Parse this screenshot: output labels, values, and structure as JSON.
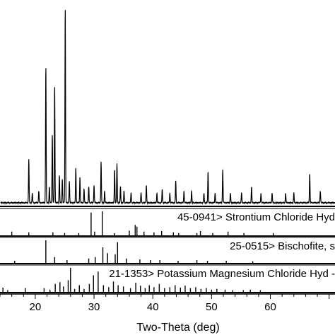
{
  "chart_data": {
    "type": "line",
    "xlabel": "Two-Theta (deg)",
    "xlim": [
      14,
      71
    ],
    "x_ticks": [
      20,
      30,
      40,
      50,
      60
    ],
    "grid": false,
    "pattern": {
      "peaks": [
        {
          "x": 18.9,
          "h": 0.22
        },
        {
          "x": 19.5,
          "h": 0.05
        },
        {
          "x": 20.6,
          "h": 0.06
        },
        {
          "x": 21.8,
          "h": 0.7
        },
        {
          "x": 22.4,
          "h": 0.08
        },
        {
          "x": 22.9,
          "h": 0.35
        },
        {
          "x": 23.3,
          "h": 0.6
        },
        {
          "x": 24.1,
          "h": 0.14
        },
        {
          "x": 24.6,
          "h": 0.12
        },
        {
          "x": 25.1,
          "h": 1.0
        },
        {
          "x": 25.8,
          "h": 0.11
        },
        {
          "x": 26.9,
          "h": 0.18
        },
        {
          "x": 27.6,
          "h": 0.13
        },
        {
          "x": 28.3,
          "h": 0.07
        },
        {
          "x": 29.1,
          "h": 0.08
        },
        {
          "x": 30.0,
          "h": 0.09
        },
        {
          "x": 31.2,
          "h": 0.21
        },
        {
          "x": 31.8,
          "h": 0.06
        },
        {
          "x": 33.5,
          "h": 0.17
        },
        {
          "x": 33.9,
          "h": 0.2
        },
        {
          "x": 34.5,
          "h": 0.08
        },
        {
          "x": 35.1,
          "h": 0.06
        },
        {
          "x": 36.3,
          "h": 0.05
        },
        {
          "x": 38.0,
          "h": 0.05
        },
        {
          "x": 38.9,
          "h": 0.09
        },
        {
          "x": 40.7,
          "h": 0.05
        },
        {
          "x": 41.6,
          "h": 0.07
        },
        {
          "x": 42.9,
          "h": 0.05
        },
        {
          "x": 43.9,
          "h": 0.11
        },
        {
          "x": 45.3,
          "h": 0.06
        },
        {
          "x": 46.6,
          "h": 0.06
        },
        {
          "x": 48.7,
          "h": 0.05
        },
        {
          "x": 49.4,
          "h": 0.16
        },
        {
          "x": 50.6,
          "h": 0.05
        },
        {
          "x": 51.9,
          "h": 0.17
        },
        {
          "x": 53.2,
          "h": 0.05
        },
        {
          "x": 55.1,
          "h": 0.05
        },
        {
          "x": 56.8,
          "h": 0.08
        },
        {
          "x": 58.4,
          "h": 0.05
        },
        {
          "x": 60.3,
          "h": 0.05
        },
        {
          "x": 62.6,
          "h": 0.05
        },
        {
          "x": 64.0,
          "h": 0.05
        },
        {
          "x": 66.7,
          "h": 0.15
        },
        {
          "x": 68.5,
          "h": 0.06
        }
      ]
    },
    "references": [
      {
        "label": "45-0941> Strontium Chloride Hyd",
        "lines": [
          {
            "x": 16.0,
            "h": 0.18
          },
          {
            "x": 18.9,
            "h": 0.15
          },
          {
            "x": 23.0,
            "h": 0.15
          },
          {
            "x": 25.0,
            "h": 0.12
          },
          {
            "x": 27.4,
            "h": 0.12
          },
          {
            "x": 29.5,
            "h": 0.95
          },
          {
            "x": 30.1,
            "h": 0.18
          },
          {
            "x": 31.4,
            "h": 1.0
          },
          {
            "x": 33.5,
            "h": 0.12
          },
          {
            "x": 36.0,
            "h": 0.22
          },
          {
            "x": 37.0,
            "h": 0.45
          },
          {
            "x": 37.3,
            "h": 0.38
          },
          {
            "x": 38.5,
            "h": 0.18
          },
          {
            "x": 40.2,
            "h": 0.15
          },
          {
            "x": 41.5,
            "h": 0.2
          },
          {
            "x": 43.5,
            "h": 0.15
          },
          {
            "x": 44.4,
            "h": 0.12
          },
          {
            "x": 47.5,
            "h": 0.12
          },
          {
            "x": 48.1,
            "h": 0.2
          },
          {
            "x": 50.2,
            "h": 0.12
          },
          {
            "x": 52.8,
            "h": 0.18
          },
          {
            "x": 55.5,
            "h": 0.12
          },
          {
            "x": 60.5,
            "h": 0.12
          }
        ]
      },
      {
        "label": "25-0515> Bischofite, s",
        "lines": [
          {
            "x": 16.5,
            "h": 0.12
          },
          {
            "x": 21.8,
            "h": 1.0
          },
          {
            "x": 23.3,
            "h": 0.28
          },
          {
            "x": 25.4,
            "h": 0.15
          },
          {
            "x": 29.1,
            "h": 0.22
          },
          {
            "x": 30.2,
            "h": 0.28
          },
          {
            "x": 31.5,
            "h": 0.7
          },
          {
            "x": 32.3,
            "h": 0.45
          },
          {
            "x": 33.6,
            "h": 0.4
          },
          {
            "x": 34.0,
            "h": 0.92
          },
          {
            "x": 35.5,
            "h": 0.22
          },
          {
            "x": 37.8,
            "h": 0.18
          },
          {
            "x": 39.6,
            "h": 0.15
          },
          {
            "x": 41.2,
            "h": 0.15
          },
          {
            "x": 44.3,
            "h": 0.12
          },
          {
            "x": 47.5,
            "h": 0.15
          },
          {
            "x": 49.3,
            "h": 0.12
          },
          {
            "x": 52.5,
            "h": 0.12
          },
          {
            "x": 57.0,
            "h": 0.1
          }
        ]
      },
      {
        "label": "21-1353> Potassium Magnesium Chloride Hyd -",
        "lines": [
          {
            "x": 14.5,
            "h": 0.2
          },
          {
            "x": 15.3,
            "h": 0.1
          },
          {
            "x": 18.3,
            "h": 0.18
          },
          {
            "x": 21.5,
            "h": 0.18
          },
          {
            "x": 22.5,
            "h": 0.12
          },
          {
            "x": 23.4,
            "h": 0.35
          },
          {
            "x": 24.2,
            "h": 0.42
          },
          {
            "x": 24.8,
            "h": 0.25
          },
          {
            "x": 25.6,
            "h": 0.5
          },
          {
            "x": 26.0,
            "h": 1.0
          },
          {
            "x": 26.7,
            "h": 0.15
          },
          {
            "x": 27.5,
            "h": 0.3
          },
          {
            "x": 28.3,
            "h": 0.15
          },
          {
            "x": 29.2,
            "h": 0.35
          },
          {
            "x": 29.9,
            "h": 0.7
          },
          {
            "x": 30.7,
            "h": 0.85
          },
          {
            "x": 31.6,
            "h": 0.3
          },
          {
            "x": 32.5,
            "h": 0.22
          },
          {
            "x": 33.3,
            "h": 0.45
          },
          {
            "x": 34.1,
            "h": 0.3
          },
          {
            "x": 35.0,
            "h": 0.25
          },
          {
            "x": 36.2,
            "h": 0.18
          },
          {
            "x": 37.1,
            "h": 0.4
          },
          {
            "x": 37.9,
            "h": 0.28
          },
          {
            "x": 38.7,
            "h": 0.18
          },
          {
            "x": 39.4,
            "h": 0.3
          },
          {
            "x": 40.2,
            "h": 0.22
          },
          {
            "x": 41.1,
            "h": 0.35
          },
          {
            "x": 42.0,
            "h": 0.18
          },
          {
            "x": 42.9,
            "h": 0.22
          },
          {
            "x": 43.8,
            "h": 0.3
          },
          {
            "x": 44.7,
            "h": 0.2
          },
          {
            "x": 45.5,
            "h": 0.28
          },
          {
            "x": 46.4,
            "h": 0.18
          },
          {
            "x": 47.3,
            "h": 0.22
          },
          {
            "x": 48.2,
            "h": 0.15
          },
          {
            "x": 49.1,
            "h": 0.18
          },
          {
            "x": 50.0,
            "h": 0.12
          },
          {
            "x": 50.9,
            "h": 0.15
          },
          {
            "x": 52.3,
            "h": 0.12
          },
          {
            "x": 53.6,
            "h": 0.1
          },
          {
            "x": 55.4,
            "h": 0.1
          },
          {
            "x": 56.6,
            "h": 0.12
          },
          {
            "x": 58.3,
            "h": 0.1
          }
        ]
      }
    ]
  }
}
